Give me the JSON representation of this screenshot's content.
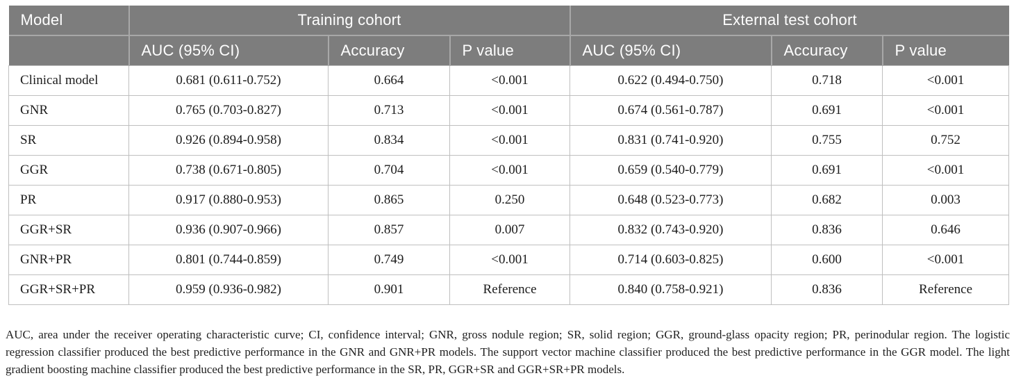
{
  "table": {
    "header": {
      "model": "Model",
      "training": "Training cohort",
      "external": "External test cohort",
      "sub": [
        "AUC (95% CI)",
        "Accuracy",
        "P value",
        "AUC (95% CI)",
        "Accuracy",
        "P value"
      ]
    },
    "rows": [
      {
        "model": "Clinical model",
        "values": [
          "0.681 (0.611-0.752)",
          "0.664",
          "<0.001",
          "0.622 (0.494-0.750)",
          "0.718",
          "<0.001"
        ]
      },
      {
        "model": "GNR",
        "values": [
          "0.765 (0.703-0.827)",
          "0.713",
          "<0.001",
          "0.674 (0.561-0.787)",
          "0.691",
          "<0.001"
        ]
      },
      {
        "model": "SR",
        "values": [
          "0.926 (0.894-0.958)",
          "0.834",
          "<0.001",
          "0.831 (0.741-0.920)",
          "0.755",
          "0.752"
        ]
      },
      {
        "model": "GGR",
        "values": [
          "0.738 (0.671-0.805)",
          "0.704",
          "<0.001",
          "0.659 (0.540-0.779)",
          "0.691",
          "<0.001"
        ]
      },
      {
        "model": "PR",
        "values": [
          "0.917 (0.880-0.953)",
          "0.865",
          "0.250",
          "0.648 (0.523-0.773)",
          "0.682",
          "0.003"
        ]
      },
      {
        "model": "GGR+SR",
        "values": [
          "0.936 (0.907-0.966)",
          "0.857",
          "0.007",
          "0.832 (0.743-0.920)",
          "0.836",
          "0.646"
        ]
      },
      {
        "model": "GNR+PR",
        "values": [
          "0.801 (0.744-0.859)",
          "0.749",
          "<0.001",
          "0.714 (0.603-0.825)",
          "0.600",
          "<0.001"
        ]
      },
      {
        "model": "GGR+SR+PR",
        "values": [
          "0.959 (0.936-0.982)",
          "0.901",
          "Reference",
          "0.840 (0.758-0.921)",
          "0.836",
          "Reference"
        ]
      }
    ]
  },
  "footnote": "AUC, area under the receiver operating characteristic curve; CI, confidence interval; GNR, gross nodule region; SR, solid region; GGR, ground-glass opacity region; PR, perinodular region. The logistic regression classifier produced the best predictive performance in the GNR and GNR+PR models. The support vector machine classifier produced the best predictive performance in the GGR model. The light gradient boosting machine classifier produced the best predictive performance in the SR, PR, GGR+SR and GGR+SR+PR models.",
  "colors": {
    "header_bg": "#7d7d7d",
    "header_text": "#ffffff",
    "header_divider": "#a8a8a8",
    "body_border": "#bfbfbf",
    "body_text": "#1c1c1c"
  }
}
